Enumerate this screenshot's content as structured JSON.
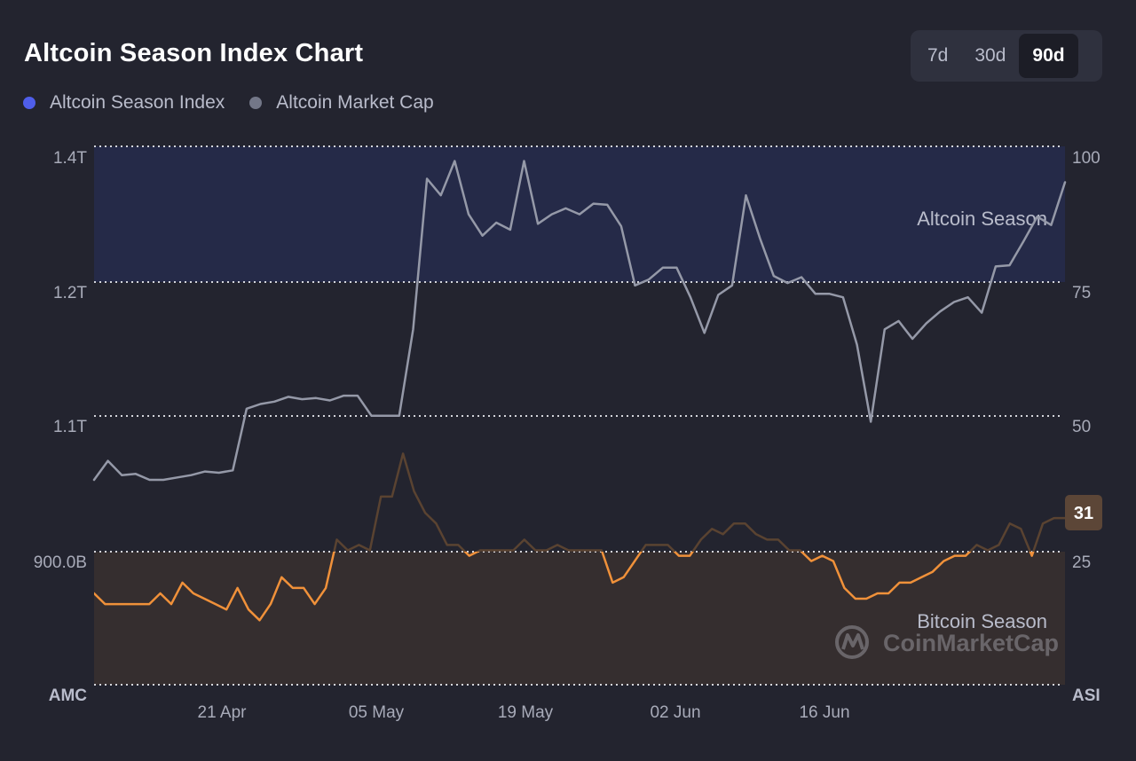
{
  "header": {
    "title": "Altcoin Season Index Chart",
    "periods": [
      "7d",
      "30d",
      "90d"
    ],
    "active_period": "90d"
  },
  "legend": [
    {
      "label": "Altcoin Season Index",
      "color": "#4f5eea"
    },
    {
      "label": "Altcoin Market Cap",
      "color": "#737788"
    }
  ],
  "colors": {
    "index_line": "#f0913a",
    "index_line_dim": "#5a4331",
    "cap_line": "#9599a8",
    "altcoin_zone": "#252a48",
    "bitcoin_zone": "#352e2f",
    "badge": "#5c4637"
  },
  "branding": {
    "watermark": "CoinMarketCap"
  },
  "chart_data": {
    "type": "line",
    "title": "Altcoin Season Index Chart",
    "left_axis": {
      "label": "AMC",
      "ticks": [
        "900.0B",
        "1.1T",
        "1.2T",
        "1.4T"
      ]
    },
    "right_axis": {
      "label": "ASI",
      "ticks": [
        "25",
        "50",
        "75",
        "100"
      ],
      "range": [
        0,
        100
      ]
    },
    "x_axis": {
      "ticks": [
        "21 Apr",
        "05 May",
        "19 May",
        "02 Jun",
        "16 Jun"
      ]
    },
    "zones": [
      {
        "label": "Altcoin Season",
        "from": 75,
        "to": 100
      },
      {
        "label": "Bitcoin Season",
        "from": 0,
        "to": 25
      }
    ],
    "current_value": "31",
    "series": [
      {
        "name": "Altcoin Season Index",
        "values": [
          17,
          15,
          15,
          15,
          15,
          15,
          17,
          15,
          19,
          17,
          16,
          15,
          14,
          18,
          14,
          12,
          15,
          20,
          18,
          18,
          15,
          18,
          27,
          25,
          26,
          25,
          35,
          35,
          43,
          36,
          32,
          30,
          26,
          26,
          24,
          25,
          25,
          25,
          25,
          27,
          25,
          25,
          26,
          25,
          25,
          25,
          25,
          19,
          20,
          23,
          26,
          26,
          26,
          24,
          24,
          27,
          29,
          28,
          30,
          30,
          28,
          27,
          27,
          25,
          25,
          23,
          24,
          23,
          18,
          16,
          16,
          17,
          17,
          19,
          19,
          20,
          21,
          23,
          24,
          24,
          26,
          25,
          26,
          30,
          29,
          24,
          30,
          31,
          31
        ]
      },
      {
        "name": "Altcoin Market Cap",
        "values": [
          1046,
          1062,
          1050,
          1051,
          1046,
          1046,
          1048,
          1050,
          1053,
          1052,
          1054,
          1106,
          1110,
          1112,
          1116,
          1114,
          1115,
          1113,
          1117,
          1117,
          1100,
          1100,
          1100,
          1173,
          1300,
          1286,
          1315,
          1270,
          1252,
          1263,
          1257,
          1315,
          1262,
          1270,
          1275,
          1270,
          1279,
          1278,
          1260,
          1210,
          1215,
          1225,
          1225,
          1200,
          1170,
          1202,
          1210,
          1286,
          1250,
          1218,
          1212,
          1217,
          1203,
          1203,
          1200,
          1160,
          1095,
          1173,
          1180,
          1165,
          1178,
          1188,
          1196,
          1200,
          1187,
          1226,
          1227,
          1247,
          1268,
          1261,
          1297
        ]
      }
    ]
  }
}
